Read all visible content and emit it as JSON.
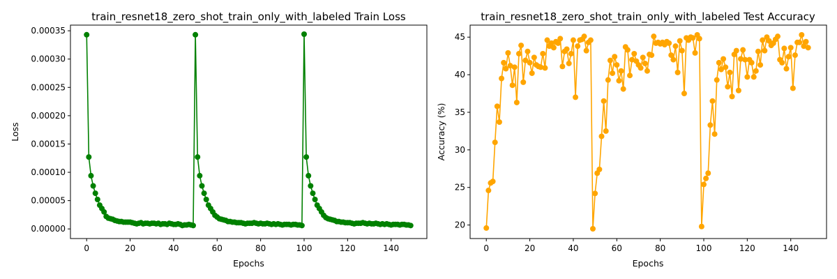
{
  "chart_data": [
    {
      "type": "line",
      "title": "train_resnet18_zero_shot_train_only_with_labeled Train Loss",
      "xlabel": "Epochs",
      "ylabel": "Loss",
      "xlim": [
        -7.45,
        156.45
      ],
      "ylim": [
        -1.7e-05,
        0.00036
      ],
      "xticks": [
        0,
        20,
        40,
        60,
        80,
        100,
        120,
        140
      ],
      "xtick_labels": [
        "0",
        "20",
        "40",
        "60",
        "80",
        "100",
        "120",
        "140"
      ],
      "yticks": [
        0,
        5e-05,
        0.0001,
        0.00015,
        0.0002,
        0.00025,
        0.0003,
        0.00035
      ],
      "ytick_labels": [
        "0.00000",
        "0.00005",
        "0.00010",
        "0.00015",
        "0.00020",
        "0.00025",
        "0.00030",
        "0.00035"
      ],
      "grid": false,
      "color": "#008000",
      "series": [
        {
          "values": [
            0.000343,
            0.000127,
            9.4e-05,
            7.6e-05,
            6.3e-05,
            5.2e-05,
            4.2e-05,
            3.6e-05,
            3e-05,
            2.2e-05,
            1.9e-05,
            1.8e-05,
            1.7e-05,
            1.5e-05,
            1.4e-05,
            1.3e-05,
            1.3e-05,
            1.2e-05,
            1.2e-05,
            1.2e-05,
            1.2e-05,
            1.1e-05,
            1e-05,
            9e-06,
            1e-05,
            1.1e-05,
            9e-06,
            1e-05,
            1e-05,
            9e-06,
            1e-05,
            1e-05,
            9e-06,
            1e-05,
            8e-06,
            9e-06,
            9e-06,
            8e-06,
            1e-05,
            9e-06,
            8e-06,
            8e-06,
            9e-06,
            8e-06,
            6e-06,
            7e-06,
            7e-06,
            8e-06,
            7e-06,
            6e-06,
            0.000343,
            0.000127,
            9.4e-05,
            7.6e-05,
            6.3e-05,
            5.2e-05,
            4.2e-05,
            3.6e-05,
            3e-05,
            2.4e-05,
            2.1e-05,
            1.8e-05,
            1.7e-05,
            1.6e-05,
            1.5e-05,
            1.3e-05,
            1.3e-05,
            1.2e-05,
            1.2e-05,
            1.1e-05,
            1.1e-05,
            1.1e-05,
            1e-05,
            9e-06,
            1e-05,
            1e-05,
            1e-05,
            1.1e-05,
            1e-05,
            9e-06,
            1e-05,
            9e-06,
            9e-06,
            1e-05,
            9e-06,
            8e-06,
            9e-06,
            8e-06,
            9e-06,
            8e-06,
            7e-06,
            8e-06,
            8e-06,
            8e-06,
            7e-06,
            8e-06,
            8e-06,
            7e-06,
            7e-06,
            6e-06,
            0.000344,
            0.000127,
            9.4e-05,
            7.6e-05,
            6.3e-05,
            5.2e-05,
            4.2e-05,
            3.6e-05,
            3e-05,
            2.4e-05,
            2e-05,
            1.8e-05,
            1.7e-05,
            1.6e-05,
            1.5e-05,
            1.3e-05,
            1.3e-05,
            1.2e-05,
            1.2e-05,
            1.1e-05,
            1.1e-05,
            1.1e-05,
            1e-05,
            9e-06,
            1e-05,
            1e-05,
            1e-05,
            1.1e-05,
            1e-05,
            9e-06,
            1e-05,
            9e-06,
            9e-06,
            1e-05,
            9e-06,
            8e-06,
            9e-06,
            8e-06,
            9e-06,
            8e-06,
            7e-06,
            8e-06,
            8e-06,
            8e-06,
            7e-06,
            8e-06,
            8e-06,
            7e-06,
            7e-06,
            6e-06
          ]
        }
      ]
    },
    {
      "type": "line",
      "title": "train_resnet18_zero_shot_train_only_with_labeled Test Accuracy",
      "xlabel": "Epochs",
      "ylabel": "Accuracy (%)",
      "xlim": [
        -7.45,
        156.45
      ],
      "ylim": [
        18.2,
        46.6
      ],
      "xticks": [
        0,
        20,
        40,
        60,
        80,
        100,
        120,
        140
      ],
      "xtick_labels": [
        "0",
        "20",
        "40",
        "60",
        "80",
        "100",
        "120",
        "140"
      ],
      "yticks": [
        20,
        25,
        30,
        35,
        40,
        45
      ],
      "ytick_labels": [
        "20",
        "25",
        "30",
        "35",
        "40",
        "45"
      ],
      "grid": false,
      "color": "#ffa500",
      "series": [
        {
          "values": [
            19.6,
            24.6,
            25.6,
            25.8,
            31.0,
            35.8,
            33.7,
            39.5,
            41.6,
            40.8,
            42.9,
            41.2,
            38.6,
            41.0,
            36.3,
            42.8,
            43.9,
            39.0,
            41.9,
            43.1,
            41.6,
            40.2,
            42.3,
            41.3,
            41.1,
            41.0,
            42.8,
            40.9,
            44.6,
            43.8,
            44.2,
            43.6,
            44.4,
            44.2,
            44.8,
            41.1,
            43.1,
            43.4,
            41.5,
            42.8,
            44.6,
            37.0,
            43.8,
            44.6,
            44.7,
            45.1,
            43.2,
            44.3,
            44.6,
            19.5,
            24.2,
            26.9,
            27.4,
            31.8,
            36.5,
            32.5,
            39.3,
            41.9,
            40.2,
            42.4,
            41.3,
            39.2,
            40.5,
            38.1,
            43.7,
            43.3,
            39.9,
            42.0,
            42.8,
            41.8,
            41.3,
            40.9,
            42.3,
            41.5,
            40.5,
            42.7,
            42.6,
            45.1,
            44.2,
            44.3,
            44.1,
            44.3,
            44.0,
            44.4,
            44.2,
            42.6,
            42.0,
            43.8,
            40.3,
            44.5,
            43.2,
            37.5,
            44.9,
            44.6,
            45.0,
            44.9,
            42.9,
            45.3,
            44.8,
            19.8,
            25.4,
            26.2,
            26.9,
            33.3,
            36.5,
            32.1,
            39.3,
            41.6,
            40.7,
            42.1,
            41.0,
            38.4,
            40.3,
            37.1,
            42.7,
            43.2,
            37.9,
            42.1,
            43.3,
            42.0,
            39.7,
            42.0,
            41.6,
            39.7,
            40.5,
            43.1,
            41.3,
            44.6,
            43.2,
            45.0,
            44.5,
            43.9,
            44.2,
            44.7,
            45.1,
            42.0,
            41.6,
            43.5,
            40.8,
            42.4,
            43.6,
            38.2,
            42.6,
            44.3,
            44.3,
            45.3,
            43.8,
            44.4,
            43.6
          ]
        }
      ]
    }
  ]
}
